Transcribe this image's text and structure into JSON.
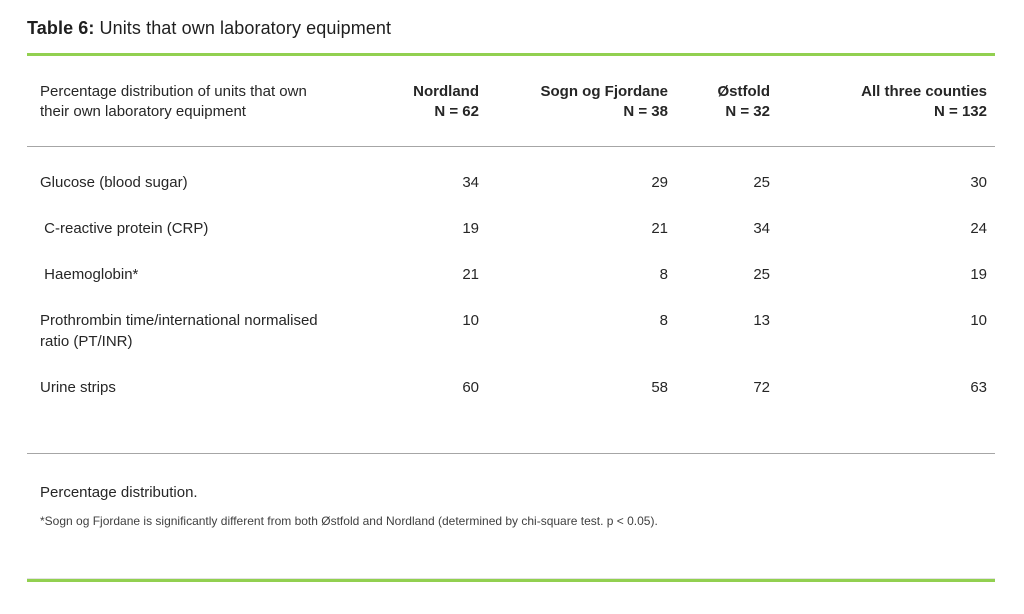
{
  "title": {
    "label": "Table 6:",
    "text": "Units that own laboratory equipment"
  },
  "chart_data": {
    "type": "table",
    "title": "Table 6: Units that own laboratory equipment",
    "row_header": "Percentage distribution of units that own their own laboratory equipment",
    "columns": [
      {
        "name": "Nordland",
        "n": "N = 62"
      },
      {
        "name": "Sogn og Fjordane",
        "n": "N = 38"
      },
      {
        "name": "Østfold",
        "n": "N = 32"
      },
      {
        "name": "All three counties",
        "n": "N = 132"
      }
    ],
    "rows": [
      {
        "label": "Glucose (blood sugar)",
        "values": [
          34,
          29,
          25,
          30
        ]
      },
      {
        "label": " C-reactive protein (CRP)",
        "values": [
          19,
          21,
          34,
          24
        ]
      },
      {
        "label": " Haemoglobin*",
        "values": [
          21,
          8,
          25,
          19
        ]
      },
      {
        "label": "Prothrombin time/international normalised ratio (PT/INR)",
        "values": [
          10,
          8,
          13,
          10
        ]
      },
      {
        "label": "Urine strips",
        "values": [
          60,
          58,
          72,
          63
        ]
      }
    ],
    "unit": "percent",
    "layout": {
      "value_alignment": "right",
      "grid": "horizontal rules only"
    }
  },
  "footer": {
    "note": "Percentage distribution.",
    "footnote": "*Sogn og Fjordane is significantly different from both Østfold and Nordland (determined by chi-square test. p < 0.05)."
  },
  "colors": {
    "accent_green": "#92d050",
    "rule_gray": "#a6a6a6",
    "text": "#262626"
  }
}
